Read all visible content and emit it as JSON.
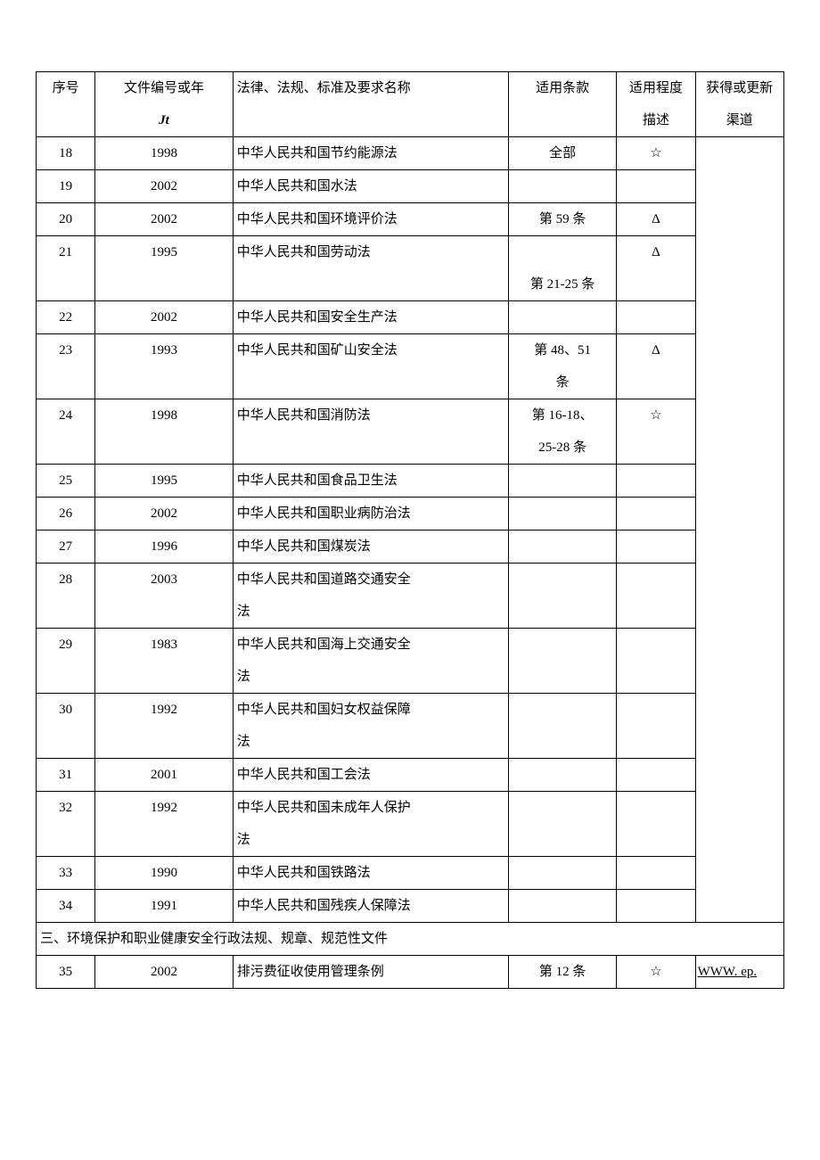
{
  "colors": {
    "border": "#000000",
    "text": "#000000",
    "background": "#ffffff"
  },
  "header": {
    "seq": "序号",
    "year_line1": "文件编号或年",
    "year_line2": "Jt",
    "name": "法律、法规、标准及要求名称",
    "clause": "适用条款",
    "degree_line1": "适用程度",
    "degree_line2": "描述",
    "source_line1": "获得或更新",
    "source_line2": "渠道"
  },
  "rows": [
    {
      "seq": "18",
      "year": "1998",
      "name": "中华人民共和国节约能源法",
      "clause": "全部",
      "degree": "☆"
    },
    {
      "seq": "19",
      "year": "2002",
      "name": "中华人民共和国水法",
      "clause": "",
      "degree": ""
    },
    {
      "seq": "20",
      "year": "2002",
      "name": "中华人民共和国环境评价法",
      "clause": "第 59 条",
      "degree": "Δ"
    },
    {
      "seq": "21",
      "year": "1995",
      "name": "中华人民共和国劳动法",
      "clause": "第 21-25 条",
      "degree": "Δ",
      "two_line": true
    },
    {
      "seq": "22",
      "year": "2002",
      "name": "中华人民共和国安全生产法",
      "clause": "",
      "degree": ""
    },
    {
      "seq": "23",
      "year": "1993",
      "name": "中华人民共和国矿山安全法",
      "clause": "第 48、51 条",
      "degree": "Δ",
      "two_line_clause": [
        "第 48、51",
        "条"
      ]
    },
    {
      "seq": "24",
      "year": "1998",
      "name": "中华人民共和国消防法",
      "clause": "第 16-18、25-28 条",
      "degree": "☆",
      "two_line_clause": [
        "第 16-18、",
        "25-28 条"
      ]
    },
    {
      "seq": "25",
      "year": "1995",
      "name": "中华人民共和国食品卫生法",
      "clause": "",
      "degree": ""
    },
    {
      "seq": "26",
      "year": "2002",
      "name": "中华人民共和国职业病防治法",
      "clause": "",
      "degree": ""
    },
    {
      "seq": "27",
      "year": "1996",
      "name": "中华人民共和国煤炭法",
      "clause": "",
      "degree": ""
    },
    {
      "seq": "28",
      "year": "2003",
      "name": "中华人民共和国道路交通安全法",
      "clause": "",
      "degree": "",
      "two_line_name": [
        "中华人民共和国道路交通安全",
        "法"
      ]
    },
    {
      "seq": "29",
      "year": "1983",
      "name": "中华人民共和国海上交通安全法",
      "clause": "",
      "degree": "",
      "two_line_name": [
        "中华人民共和国海上交通安全",
        "法"
      ]
    },
    {
      "seq": "30",
      "year": "1992",
      "name": "中华人民共和国妇女权益保障法",
      "clause": "",
      "degree": "",
      "two_line_name": [
        "中华人民共和国妇女权益保障",
        "法"
      ]
    },
    {
      "seq": "31",
      "year": "2001",
      "name": "中华人民共和国工会法",
      "clause": "",
      "degree": ""
    },
    {
      "seq": "32",
      "year": "1992",
      "name": "中华人民共和国未成年人保护法",
      "clause": "",
      "degree": "",
      "two_line_name": [
        "中华人民共和国未成年人保护",
        "法"
      ]
    },
    {
      "seq": "33",
      "year": "1990",
      "name": "中华人民共和国铁路法",
      "clause": "",
      "degree": ""
    },
    {
      "seq": "34",
      "year": "1991",
      "name": "中华人民共和国残疾人保障法",
      "clause": "",
      "degree": ""
    }
  ],
  "section": {
    "title": "三、环境保护和职业健康安全行政法规、规章、规范性文件"
  },
  "row35": {
    "seq": "35",
    "year": "2002",
    "name": "排污费征收使用管理条例",
    "clause": "第 12 条",
    "degree": "☆",
    "source": "WWW. ep."
  }
}
